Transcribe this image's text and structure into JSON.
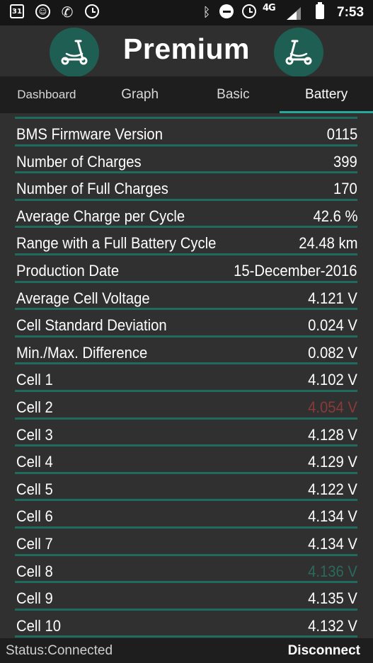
{
  "statusbar": {
    "calendar_day": "31",
    "network": "4G",
    "time": "7:53"
  },
  "header": {
    "title": "Premium"
  },
  "tabs": [
    {
      "label": "Dashboard",
      "active": false
    },
    {
      "label": "Graph",
      "active": false
    },
    {
      "label": "Basic",
      "active": false
    },
    {
      "label": "Battery",
      "active": true
    }
  ],
  "colors": {
    "accent": "#26a89a",
    "divider": "#1f6b5e",
    "logo_bg": "#1f5e53",
    "value_low": "#8a3a3a",
    "value_high": "#2a6a5c"
  },
  "rows": [
    {
      "label": "BMS Firmware Version",
      "value": "0115"
    },
    {
      "label": "Number of Charges",
      "value": "399"
    },
    {
      "label": "Number of Full Charges",
      "value": "170"
    },
    {
      "label": "Average Charge per Cycle",
      "value": "42.6 %"
    },
    {
      "label": "Range with a Full Battery Cycle",
      "value": "24.48 km"
    },
    {
      "label": "Production Date",
      "value": "15-December-2016"
    },
    {
      "label": "Average Cell Voltage",
      "value": "4.121 V"
    },
    {
      "label": "Cell Standard Deviation",
      "value": "0.024 V"
    },
    {
      "label": "Min./Max. Difference",
      "value": "0.082 V"
    },
    {
      "label": "Cell 1",
      "value": "4.102 V"
    },
    {
      "label": "Cell 2",
      "value": "4.054 V",
      "highlight": "low"
    },
    {
      "label": "Cell 3",
      "value": "4.128 V"
    },
    {
      "label": "Cell 4",
      "value": "4.129 V"
    },
    {
      "label": "Cell 5",
      "value": "4.122 V"
    },
    {
      "label": "Cell 6",
      "value": "4.134 V"
    },
    {
      "label": "Cell 7",
      "value": "4.134 V"
    },
    {
      "label": "Cell 8",
      "value": "4.136 V",
      "highlight": "high"
    },
    {
      "label": "Cell 9",
      "value": "4.135 V"
    },
    {
      "label": "Cell 10",
      "value": "4.132 V"
    }
  ],
  "footer": {
    "status": "Status:Connected",
    "disconnect_label": "Disconnect"
  }
}
